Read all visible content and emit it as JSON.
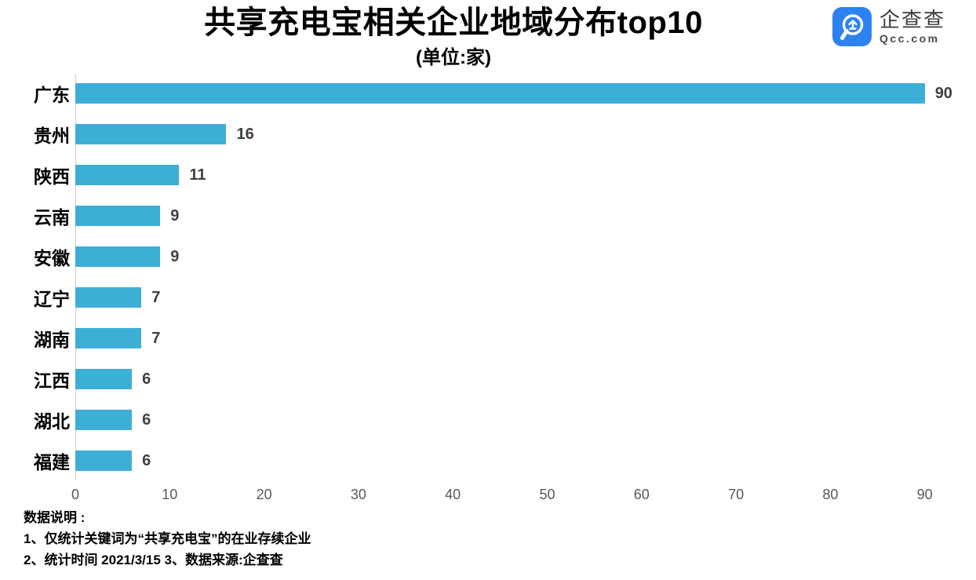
{
  "header": {
    "title": "共享充电宝相关企业地域分布top10",
    "subtitle": "(单位:家)",
    "logo": {
      "name": "企查查",
      "domain": "Qcc.com"
    }
  },
  "chart_data": {
    "type": "bar",
    "orientation": "horizontal",
    "title": "共享充电宝相关企业地域分布top10",
    "subtitle_unit": "(单位:家)",
    "categories": [
      "广东",
      "贵州",
      "陕西",
      "云南",
      "安徽",
      "辽宁",
      "湖南",
      "江西",
      "湖北",
      "福建"
    ],
    "values": [
      90,
      16,
      11,
      9,
      9,
      7,
      7,
      6,
      6,
      6
    ],
    "xlabel": "",
    "ylabel": "",
    "xlim": [
      0,
      90
    ],
    "x_ticks": [
      0,
      10,
      20,
      30,
      40,
      50,
      60,
      70,
      80,
      90
    ],
    "grid": false,
    "legend": false,
    "value_labels_shown": true,
    "bar_color": "#3DAFD6"
  },
  "footer": {
    "heading": "数据说明 :",
    "note1": "1、仅统计关键词为“共享充电宝”的在业存续企业",
    "note2": "2、统计时间 2021/3/15   3、数据来源:企查查"
  },
  "colors": {
    "bar": "#3DAFD6",
    "logo_blue": "#2E82F0",
    "axis_line": "#CCCCCC",
    "tick_text": "#595959",
    "value_text": "#404040"
  }
}
